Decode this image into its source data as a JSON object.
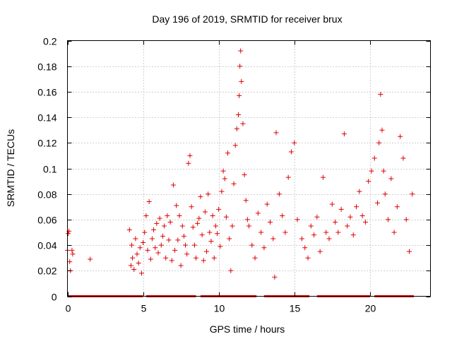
{
  "chart_data": {
    "type": "scatter",
    "title": "Day 196 of 2019, SRMTID for receiver brux",
    "xlabel": "GPS time / hours",
    "ylabel": "SRMTID / TECUs",
    "xlim": [
      0,
      24
    ],
    "ylim": [
      0,
      0.2
    ],
    "xticks": [
      0,
      5,
      10,
      15,
      20
    ],
    "yticks": [
      0,
      0.02,
      0.04,
      0.06,
      0.08,
      0.1,
      0.12,
      0.14,
      0.16,
      0.18,
      0.2
    ],
    "grid": true,
    "marker": "plus",
    "color": "#e00000",
    "series": [
      {
        "name": "SRMTID",
        "x": [
          0.0,
          0.05,
          0.1,
          0.15,
          0.2,
          0.3,
          0.35,
          1.5,
          4.1,
          4.2,
          4.25,
          4.3,
          4.4,
          4.5,
          4.6,
          4.7,
          4.8,
          4.9,
          5.0,
          5.1,
          5.2,
          5.3,
          5.4,
          5.5,
          5.6,
          5.7,
          5.8,
          5.9,
          6.0,
          6.1,
          6.2,
          6.3,
          6.4,
          6.5,
          6.6,
          6.7,
          6.8,
          6.9,
          7.0,
          7.1,
          7.2,
          7.3,
          7.4,
          7.5,
          7.6,
          7.7,
          7.8,
          7.9,
          8.0,
          8.1,
          8.2,
          8.3,
          8.4,
          8.5,
          8.6,
          8.7,
          8.8,
          8.9,
          9.0,
          9.1,
          9.2,
          9.3,
          9.4,
          9.5,
          9.6,
          9.7,
          9.8,
          9.9,
          10.0,
          10.1,
          10.2,
          10.3,
          10.4,
          10.5,
          10.6,
          10.7,
          10.8,
          10.9,
          11.0,
          11.1,
          11.2,
          11.3,
          11.35,
          11.4,
          11.45,
          11.5,
          11.6,
          11.7,
          11.8,
          11.9,
          12.0,
          12.2,
          12.4,
          12.6,
          12.8,
          13.0,
          13.2,
          13.4,
          13.6,
          13.7,
          13.8,
          14.0,
          14.2,
          14.4,
          14.6,
          14.8,
          15.0,
          15.2,
          15.5,
          15.7,
          15.9,
          16.1,
          16.3,
          16.5,
          16.7,
          16.9,
          17.1,
          17.3,
          17.5,
          17.7,
          17.9,
          18.1,
          18.3,
          18.5,
          18.7,
          18.9,
          19.1,
          19.3,
          19.5,
          19.7,
          19.9,
          20.1,
          20.3,
          20.5,
          20.6,
          20.7,
          20.8,
          20.9,
          21.0,
          21.2,
          21.4,
          21.6,
          21.8,
          22.0,
          22.2,
          22.4,
          22.6,
          22.8
        ],
        "y": [
          0.036,
          0.049,
          0.051,
          0.027,
          0.02,
          0.036,
          0.033,
          0.029,
          0.052,
          0.024,
          0.04,
          0.03,
          0.021,
          0.045,
          0.033,
          0.026,
          0.038,
          0.018,
          0.042,
          0.05,
          0.063,
          0.036,
          0.074,
          0.029,
          0.045,
          0.052,
          0.038,
          0.057,
          0.034,
          0.061,
          0.04,
          0.047,
          0.055,
          0.03,
          0.063,
          0.044,
          0.058,
          0.028,
          0.087,
          0.036,
          0.071,
          0.044,
          0.063,
          0.024,
          0.055,
          0.047,
          0.04,
          0.033,
          0.104,
          0.11,
          0.07,
          0.054,
          0.04,
          0.03,
          0.057,
          0.061,
          0.078,
          0.048,
          0.028,
          0.066,
          0.035,
          0.08,
          0.05,
          0.043,
          0.063,
          0.03,
          0.055,
          0.049,
          0.068,
          0.039,
          0.082,
          0.098,
          0.092,
          0.062,
          0.112,
          0.045,
          0.02,
          0.055,
          0.088,
          0.118,
          0.131,
          0.142,
          0.157,
          0.18,
          0.192,
          0.168,
          0.135,
          0.095,
          0.075,
          0.06,
          0.055,
          0.04,
          0.03,
          0.065,
          0.05,
          0.038,
          0.072,
          0.058,
          0.045,
          0.015,
          0.128,
          0.08,
          0.063,
          0.05,
          0.093,
          0.113,
          0.12,
          0.06,
          0.045,
          0.038,
          0.03,
          0.055,
          0.048,
          0.062,
          0.035,
          0.093,
          0.05,
          0.045,
          0.072,
          0.058,
          0.05,
          0.068,
          0.127,
          0.055,
          0.062,
          0.048,
          0.07,
          0.082,
          0.063,
          0.058,
          0.09,
          0.098,
          0.108,
          0.073,
          0.12,
          0.158,
          0.13,
          0.098,
          0.08,
          0.06,
          0.092,
          0.05,
          0.07,
          0.125,
          0.108,
          0.06,
          0.035,
          0.08
        ]
      }
    ],
    "zero_markers": {
      "y": 0,
      "x_ranges": [
        [
          0.0,
          4.1
        ],
        [
          4.1,
          5.0
        ],
        [
          5.2,
          8.5
        ],
        [
          8.8,
          12.5
        ],
        [
          13.0,
          16.0
        ],
        [
          16.5,
          20.0
        ],
        [
          20.3,
          22.9
        ]
      ]
    }
  }
}
